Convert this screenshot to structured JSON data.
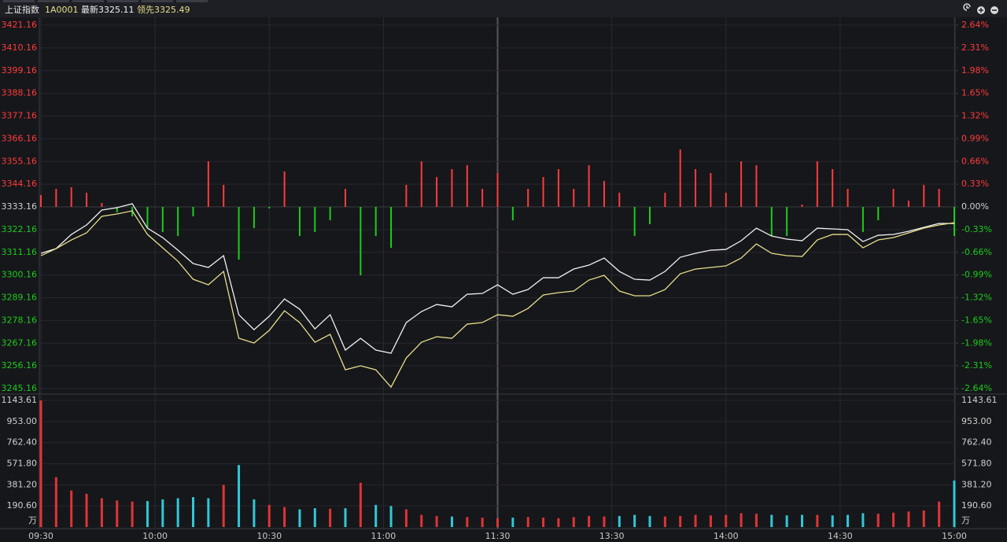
{
  "chart_data": {
    "type": "line",
    "header": {
      "name": "上证指数",
      "code": "1A0001"
    },
    "x": [
      0,
      4,
      8,
      12,
      16,
      20,
      24,
      28,
      32,
      36,
      40,
      44,
      48,
      52,
      56,
      60,
      64,
      68,
      72,
      76,
      80,
      84,
      88,
      92,
      96,
      100,
      104,
      108,
      112,
      116,
      120,
      124,
      128,
      132,
      136,
      140,
      144,
      148,
      152,
      156,
      160,
      164,
      168,
      172,
      176,
      180,
      184,
      188,
      192,
      196,
      200,
      204,
      208,
      212,
      216,
      220,
      224,
      228,
      232,
      236,
      240
    ],
    "xlim": [
      0,
      240
    ],
    "xticks": [
      {
        "value": 0,
        "label": "09:30"
      },
      {
        "value": 30,
        "label": "10:00"
      },
      {
        "value": 60,
        "label": "10:30"
      },
      {
        "value": 90,
        "label": "11:00"
      },
      {
        "value": 120,
        "label": "11:30"
      },
      {
        "value": 150,
        "label": "13:30"
      },
      {
        "value": 180,
        "label": "14:00"
      },
      {
        "value": 210,
        "label": "14:30"
      },
      {
        "value": 240,
        "label": "15:00"
      }
    ],
    "ylim": [
      3245.16,
      3421.16
    ],
    "yticks": [
      3245.16,
      3256.16,
      3267.16,
      3278.16,
      3289.16,
      3300.16,
      3311.16,
      3322.16,
      3333.16,
      3344.16,
      3355.16,
      3366.16,
      3377.16,
      3388.16,
      3399.16,
      3410.16,
      3421.16
    ],
    "baseline": 3333.16,
    "y2lim": [
      -2.64,
      2.64
    ],
    "y2ticks": [
      {
        "value": -2.64,
        "label": "-2.64%"
      },
      {
        "value": -2.31,
        "label": "-2.31%"
      },
      {
        "value": -1.98,
        "label": "-1.98%"
      },
      {
        "value": -1.65,
        "label": "-1.65%"
      },
      {
        "value": -1.32,
        "label": "-1.32%"
      },
      {
        "value": -0.99,
        "label": "-0.99%"
      },
      {
        "value": -0.66,
        "label": "-0.66%"
      },
      {
        "value": -0.33,
        "label": "-0.33%"
      },
      {
        "value": 0,
        "label": "0.00%"
      },
      {
        "value": 0.33,
        "label": "0.33%"
      },
      {
        "value": 0.66,
        "label": "0.66%"
      },
      {
        "value": 0.99,
        "label": "0.99%"
      },
      {
        "value": 1.32,
        "label": "1.32%"
      },
      {
        "value": 1.65,
        "label": "1.65%"
      },
      {
        "value": 1.98,
        "label": "1.98%"
      },
      {
        "value": 2.31,
        "label": "2.31%"
      },
      {
        "value": 2.64,
        "label": "2.64%"
      }
    ],
    "grid": true,
    "series": [
      {
        "name": "最新",
        "color": "#f0f0f0",
        "last": 3325.11,
        "values": [
          3310.67,
          3312.96,
          3319.81,
          3324.39,
          3331.62,
          3332.77,
          3334.67,
          3322.86,
          3318.29,
          3312.19,
          3305.72,
          3303.81,
          3309.53,
          3280.95,
          3273.71,
          3280.19,
          3288.57,
          3283.62,
          3274.09,
          3280.95,
          3263.81,
          3269.52,
          3263.81,
          3262.28,
          3277.14,
          3282.48,
          3285.9,
          3284.76,
          3290.86,
          3291.24,
          3295.43,
          3290.86,
          3293.14,
          3298.86,
          3298.86,
          3303.05,
          3304.95,
          3308.38,
          3301.91,
          3298.1,
          3297.72,
          3301.91,
          3308.76,
          3310.67,
          3312.19,
          3312.57,
          3316.77,
          3322.86,
          3319.05,
          3317.53,
          3316.77,
          3322.86,
          3322.48,
          3322.1,
          3316.38,
          3319.43,
          3319.81,
          3321.34,
          3323.24,
          3325.15,
          3325.11
        ]
      },
      {
        "name": "领先",
        "color": "#e6df8a",
        "last": 3325.49,
        "values": [
          3309.53,
          3312.96,
          3317.15,
          3320.58,
          3328.58,
          3329.72,
          3331.24,
          3319.81,
          3313.34,
          3306.86,
          3298.1,
          3295.43,
          3301.91,
          3269.52,
          3267.24,
          3273.33,
          3282.86,
          3277.14,
          3267.62,
          3271.43,
          3254.28,
          3256.19,
          3254.28,
          3245.9,
          3260.0,
          3267.62,
          3270.28,
          3269.52,
          3276.38,
          3277.14,
          3280.95,
          3280.19,
          3284.0,
          3290.48,
          3291.62,
          3292.38,
          3297.72,
          3300.0,
          3292.38,
          3290.1,
          3290.1,
          3293.14,
          3300.76,
          3303.05,
          3303.81,
          3304.57,
          3308.38,
          3315.24,
          3310.67,
          3309.53,
          3309.15,
          3317.15,
          3319.81,
          3319.81,
          3313.34,
          3317.15,
          3318.29,
          3320.58,
          3322.86,
          3324.39,
          3325.49
        ]
      }
    ],
    "strength": {
      "up_color": "#ff3b3b",
      "down_color": "#1ccc1c",
      "values": [
        3338.86,
        3341.91,
        3342.67,
        3340.01,
        3335.05,
        3330.48,
        3328.58,
        3322.86,
        3320.96,
        3319.05,
        3328.58,
        3355.25,
        3343.82,
        3307.62,
        3322.86,
        3332.39,
        3350.29,
        3319.05,
        3320.96,
        3326.67,
        3341.91,
        3300.0,
        3319.05,
        3313.34,
        3343.82,
        3355.25,
        3347.63,
        3351.44,
        3353.34,
        3341.91,
        3349.53,
        3326.67,
        3341.91,
        3347.63,
        3351.44,
        3341.91,
        3353.34,
        3345.72,
        3340.01,
        3319.05,
        3324.77,
        3340.01,
        3360.96,
        3351.44,
        3349.53,
        3340.01,
        3355.25,
        3353.34,
        3319.05,
        3319.05,
        3334.29,
        3355.25,
        3351.44,
        3341.91,
        3320.96,
        3326.67,
        3341.91,
        3336.2,
        3343.82,
        3341.91,
        3319.05
      ]
    },
    "volume": {
      "unit": "万",
      "up_color": "#e03434",
      "down_color": "#30c8d8",
      "ylim": [
        0,
        1143.61
      ],
      "yticks": [
        {
          "value": 190.6,
          "label": "190.60"
        },
        {
          "value": 381.2,
          "label": "381.20"
        },
        {
          "value": 571.8,
          "label": "571.80"
        },
        {
          "value": 762.4,
          "label": "762.40"
        },
        {
          "value": 953,
          "label": "953.00"
        },
        1143.61
      ],
      "values": [
        1143,
        450,
        330,
        300,
        260,
        240,
        230,
        235,
        250,
        260,
        270,
        260,
        380,
        560,
        250,
        200,
        180,
        160,
        170,
        165,
        170,
        400,
        200,
        190,
        160,
        110,
        100,
        95,
        90,
        85,
        80,
        85,
        90,
        85,
        80,
        90,
        100,
        95,
        100,
        110,
        100,
        95,
        100,
        110,
        105,
        110,
        125,
        120,
        110,
        105,
        110,
        110,
        105,
        110,
        125,
        120,
        130,
        140,
        150,
        230,
        420
      ]
    }
  }
}
